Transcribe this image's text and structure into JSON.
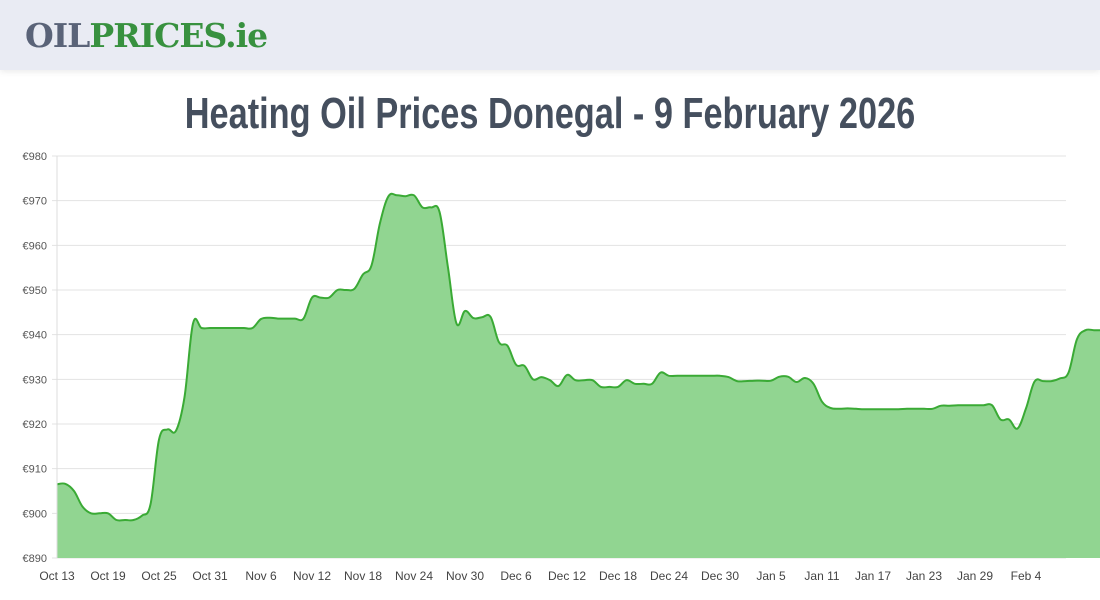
{
  "header": {
    "logo_part1": "OIL",
    "logo_part2": "PRICES.ie",
    "logo_colors": {
      "oil": "#5a6378",
      "prices": "#38913f"
    },
    "background": "#e9ebf3"
  },
  "page": {
    "title": "Heating Oil Prices Donegal - 9 February 2026"
  },
  "chart_data": {
    "type": "area",
    "title": "Heating Oil Prices Donegal - 9 February 2026",
    "xlabel": "",
    "ylabel": "",
    "ylim": [
      890,
      980
    ],
    "grid": true,
    "legend": "none",
    "line_color": "#3aaa35",
    "fill_color": "#91d591",
    "y_ticks": [
      "€980",
      "€970",
      "€960",
      "€950",
      "€940",
      "€930",
      "€920",
      "€910",
      "€900",
      "€890"
    ],
    "y_tick_values": [
      980,
      970,
      960,
      950,
      940,
      930,
      920,
      910,
      900,
      890
    ],
    "x_ticks": [
      "Oct 13",
      "Oct 19",
      "Oct 25",
      "Oct 31",
      "Nov 6",
      "Nov 12",
      "Nov 18",
      "Nov 24",
      "Nov 30",
      "Dec 6",
      "Dec 12",
      "Dec 18",
      "Dec 24",
      "Dec 30",
      "Jan 5",
      "Jan 11",
      "Jan 17",
      "Jan 23",
      "Jan 29",
      "Feb 4"
    ],
    "x_start": "Oct 13",
    "x_end": "Feb 9",
    "values": [
      906.5,
      906.6,
      905.0,
      901.5,
      900.0,
      900.0,
      900.0,
      898.5,
      898.5,
      898.5,
      899.5,
      902.0,
      916.5,
      918.8,
      918.5,
      926.0,
      942.5,
      941.5,
      941.5,
      941.5,
      941.5,
      941.5,
      941.5,
      941.5,
      943.5,
      943.8,
      943.6,
      943.6,
      943.6,
      943.6,
      948.3,
      948.3,
      948.3,
      950.0,
      950.0,
      950.3,
      953.5,
      955.5,
      965.0,
      971.0,
      971.2,
      971.0,
      971.2,
      968.5,
      968.5,
      967.5,
      955.0,
      942.5,
      945.3,
      943.7,
      943.9,
      944.0,
      938.3,
      937.5,
      933.3,
      933.0,
      930.0,
      930.5,
      929.8,
      928.5,
      931.0,
      929.8,
      929.8,
      929.8,
      928.3,
      928.3,
      928.3,
      929.8,
      929.0,
      929.0,
      929.0,
      931.5,
      930.8,
      930.8,
      930.8,
      930.8,
      930.8,
      930.8,
      930.8,
      930.5,
      929.6,
      929.6,
      929.7,
      929.7,
      929.7,
      930.6,
      930.6,
      929.4,
      930.3,
      929.0,
      925.0,
      923.6,
      923.4,
      923.5,
      923.4,
      923.3,
      923.3,
      923.3,
      923.3,
      923.3,
      923.4,
      923.4,
      923.4,
      923.4,
      924.1,
      924.1,
      924.2,
      924.2,
      924.2,
      924.2,
      924.2,
      921.0,
      921.0,
      919.0,
      923.5,
      929.5,
      929.6,
      929.6,
      930.2,
      931.5,
      939.0,
      941.0,
      941.0,
      941.0
    ]
  }
}
